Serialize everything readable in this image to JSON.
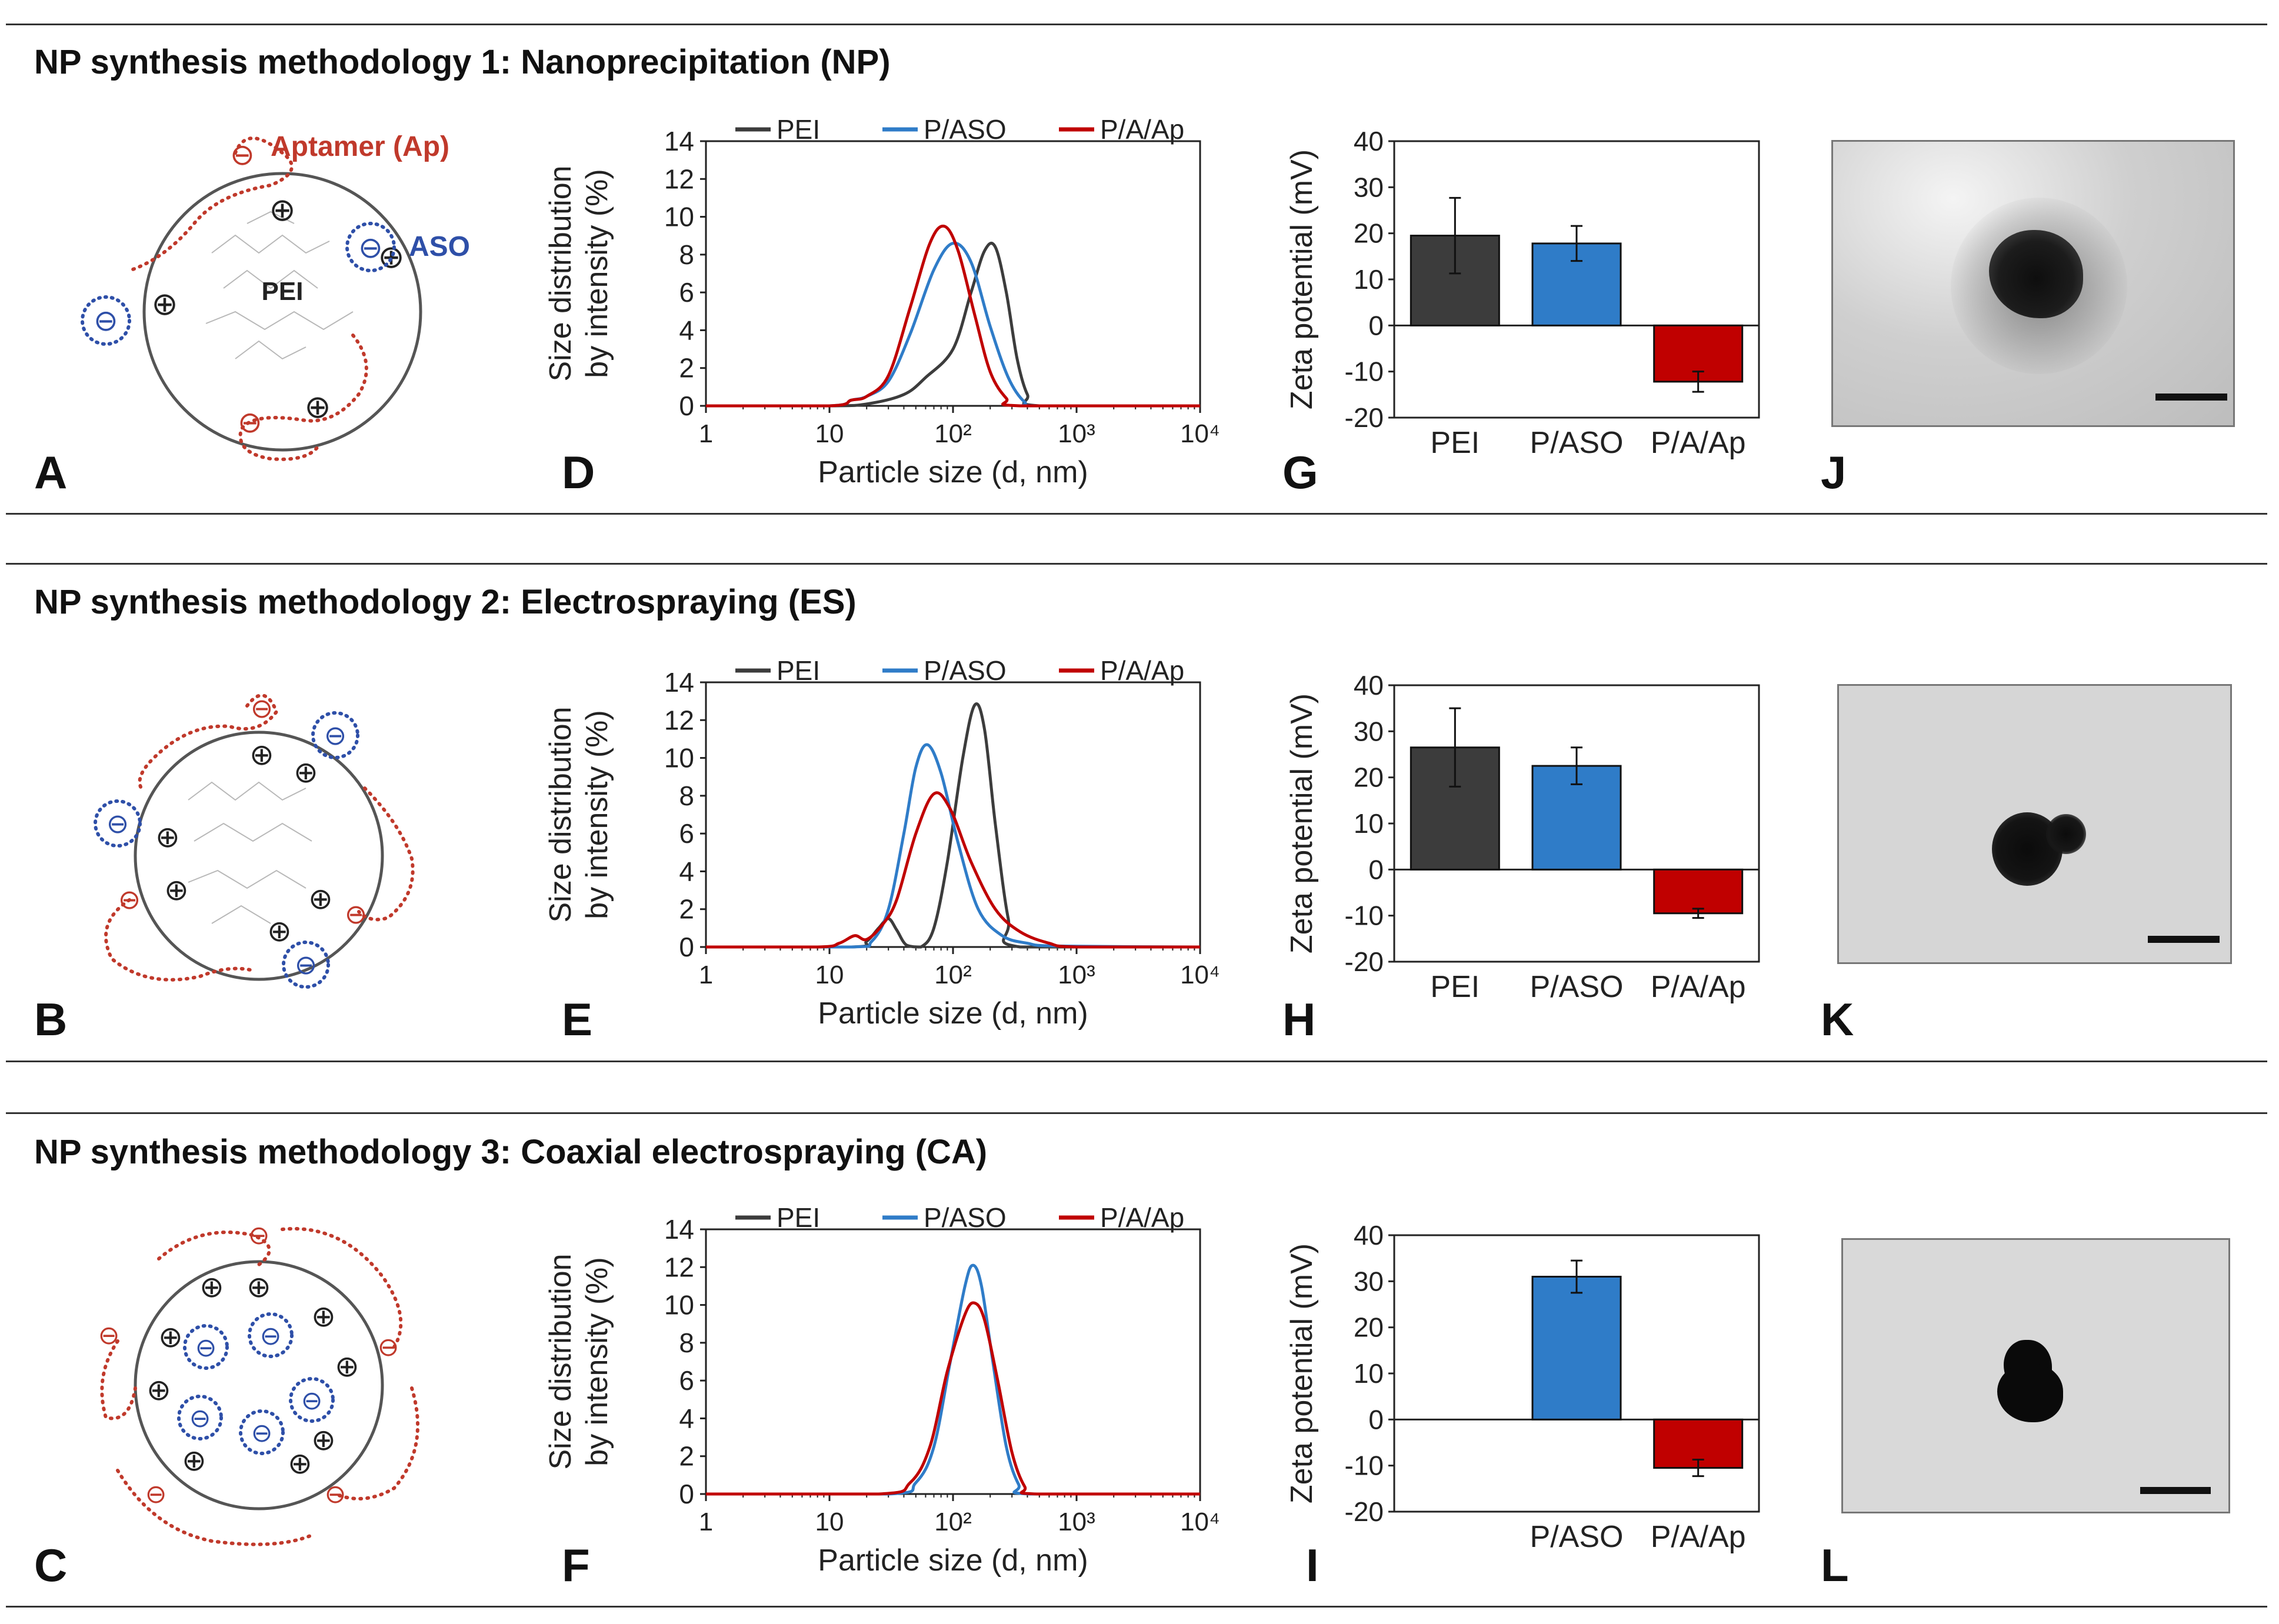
{
  "sections": [
    {
      "title": "NP synthesis methodology 1: Nanoprecipitation (NP)"
    },
    {
      "title": "NP synthesis methodology 2: Electrospraying (ES)"
    },
    {
      "title": "NP synthesis methodology 3: Coaxial electrospraying (CA)"
    }
  ],
  "panel_letters": [
    "A",
    "B",
    "C",
    "D",
    "E",
    "F",
    "G",
    "H",
    "I",
    "J",
    "K",
    "L"
  ],
  "schematic": {
    "aptamer_label": "Aptamer (Ap)",
    "aso_label": "ASO",
    "pei_label": "PEI",
    "plus_symbol": "⊕",
    "minus_symbol": "⊖"
  },
  "colors": {
    "PEI": "#3c3c3c",
    "P/ASO": "#2f7cc8",
    "P/A/Ap": "#c00000",
    "aptamer": "#c0392b",
    "aso": "#2e4fa8"
  },
  "chart_data": [
    {
      "id": "D",
      "type": "line",
      "xlabel": "Particle size (d, nm)",
      "ylabel_lines": [
        "Size distribution",
        "by intensity (%)"
      ],
      "xscale": "log",
      "xlim": [
        1,
        10000
      ],
      "ylim": [
        0,
        14
      ],
      "xticks": [
        "1",
        "10",
        "10²",
        "10³",
        "10⁴"
      ],
      "yticks": [
        "0",
        "2",
        "4",
        "6",
        "8",
        "10",
        "12",
        "14"
      ],
      "legend": [
        "PEI",
        "P/ASO",
        "P/A/Ap"
      ],
      "series": [
        {
          "name": "PEI",
          "points": [
            [
              1,
              0
            ],
            [
              10,
              0
            ],
            [
              20,
              0.1
            ],
            [
              40,
              0.6
            ],
            [
              60,
              1.5
            ],
            [
              100,
              3
            ],
            [
              140,
              6
            ],
            [
              180,
              8.2
            ],
            [
              220,
              8.4
            ],
            [
              270,
              6
            ],
            [
              330,
              2.5
            ],
            [
              400,
              0.6
            ],
            [
              500,
              0
            ],
            [
              10000,
              0
            ]
          ]
        },
        {
          "name": "P/ASO",
          "points": [
            [
              1,
              0
            ],
            [
              10,
              0
            ],
            [
              15,
              0.3
            ],
            [
              20,
              0.5
            ],
            [
              30,
              1.3
            ],
            [
              45,
              3.8
            ],
            [
              70,
              7.2
            ],
            [
              100,
              8.6
            ],
            [
              140,
              7.6
            ],
            [
              200,
              4.2
            ],
            [
              280,
              1.5
            ],
            [
              380,
              0.2
            ],
            [
              500,
              0
            ],
            [
              10000,
              0
            ]
          ]
        },
        {
          "name": "P/A/Ap",
          "points": [
            [
              1,
              0
            ],
            [
              10,
              0
            ],
            [
              15,
              0.3
            ],
            [
              20,
              0.5
            ],
            [
              30,
              1.6
            ],
            [
              45,
              5.2
            ],
            [
              65,
              8.6
            ],
            [
              85,
              9.5
            ],
            [
              110,
              8.2
            ],
            [
              150,
              4.8
            ],
            [
              200,
              1.8
            ],
            [
              270,
              0.4
            ],
            [
              350,
              0
            ],
            [
              10000,
              0
            ]
          ]
        }
      ]
    },
    {
      "id": "E",
      "type": "line",
      "xlabel": "Particle size (d, nm)",
      "ylabel_lines": [
        "Size distribution",
        "by intensity (%)"
      ],
      "xscale": "log",
      "xlim": [
        1,
        10000
      ],
      "ylim": [
        0,
        14
      ],
      "xticks": [
        "1",
        "10",
        "10²",
        "10³",
        "10⁴"
      ],
      "yticks": [
        "0",
        "2",
        "4",
        "6",
        "8",
        "10",
        "12",
        "14"
      ],
      "legend": [
        "PEI",
        "P/ASO",
        "P/A/Ap"
      ],
      "series": [
        {
          "name": "PEI",
          "points": [
            [
              1,
              0
            ],
            [
              15,
              0
            ],
            [
              20,
              0.3
            ],
            [
              25,
              1
            ],
            [
              30,
              1.5
            ],
            [
              35,
              0.9
            ],
            [
              42,
              0.1
            ],
            [
              55,
              0
            ],
            [
              70,
              1
            ],
            [
              90,
              4.5
            ],
            [
              120,
              10
            ],
            [
              150,
              12.8
            ],
            [
              180,
              11.5
            ],
            [
              220,
              6.5
            ],
            [
              280,
              1.5
            ],
            [
              350,
              0
            ],
            [
              10000,
              0
            ]
          ]
        },
        {
          "name": "P/ASO",
          "points": [
            [
              1,
              0
            ],
            [
              15,
              0
            ],
            [
              22,
              0.3
            ],
            [
              30,
              2
            ],
            [
              40,
              6
            ],
            [
              50,
              9.5
            ],
            [
              62,
              10.7
            ],
            [
              80,
              9.2
            ],
            [
              110,
              5.5
            ],
            [
              160,
              2
            ],
            [
              250,
              0.6
            ],
            [
              400,
              0.2
            ],
            [
              700,
              0.05
            ],
            [
              10000,
              0
            ]
          ]
        },
        {
          "name": "P/A/Ap",
          "points": [
            [
              1,
              0
            ],
            [
              8,
              0
            ],
            [
              12,
              0.2
            ],
            [
              16,
              0.6
            ],
            [
              20,
              0.4
            ],
            [
              27,
              1.2
            ],
            [
              35,
              2.5
            ],
            [
              50,
              6
            ],
            [
              70,
              8.1
            ],
            [
              95,
              7.3
            ],
            [
              140,
              4.5
            ],
            [
              220,
              2
            ],
            [
              350,
              0.8
            ],
            [
              600,
              0.2
            ],
            [
              1000,
              0
            ],
            [
              10000,
              0
            ]
          ]
        }
      ]
    },
    {
      "id": "F",
      "type": "line",
      "xlabel": "Particle size (d, nm)",
      "ylabel_lines": [
        "Size distribution",
        "by intensity (%)"
      ],
      "xscale": "log",
      "xlim": [
        1,
        10000
      ],
      "ylim": [
        0,
        14
      ],
      "xticks": [
        "1",
        "10",
        "10²",
        "10³",
        "10⁴"
      ],
      "yticks": [
        "0",
        "2",
        "4",
        "6",
        "8",
        "10",
        "12",
        "14"
      ],
      "legend": [
        "PEI",
        "P/ASO",
        "P/A/Ap"
      ],
      "series": [
        {
          "name": "P/ASO",
          "points": [
            [
              1,
              0
            ],
            [
              30,
              0
            ],
            [
              50,
              0.6
            ],
            [
              70,
              2.5
            ],
            [
              95,
              7
            ],
            [
              125,
              11
            ],
            [
              145,
              12.1
            ],
            [
              170,
              11
            ],
            [
              210,
              7
            ],
            [
              270,
              2.5
            ],
            [
              340,
              0.5
            ],
            [
              420,
              0
            ],
            [
              10000,
              0
            ]
          ]
        },
        {
          "name": "P/A/Ap",
          "points": [
            [
              1,
              0
            ],
            [
              25,
              0
            ],
            [
              45,
              0.6
            ],
            [
              65,
              2.5
            ],
            [
              90,
              6.5
            ],
            [
              125,
              9.5
            ],
            [
              150,
              10.1
            ],
            [
              180,
              9.2
            ],
            [
              230,
              6
            ],
            [
              300,
              2.2
            ],
            [
              380,
              0.4
            ],
            [
              480,
              0
            ],
            [
              10000,
              0
            ]
          ]
        }
      ]
    },
    {
      "id": "G",
      "type": "bar",
      "ylabel": "Zeta potential (mV)",
      "ylim": [
        -20,
        40
      ],
      "yticks": [
        "-20",
        "-10",
        "0",
        "10",
        "20",
        "30",
        "40"
      ],
      "categories": [
        "PEI",
        "P/ASO",
        "P/A/Ap"
      ],
      "values": [
        19.5,
        17.8,
        -12.2
      ],
      "errors": [
        8.2,
        3.8,
        2.2
      ]
    },
    {
      "id": "H",
      "type": "bar",
      "ylabel": "Zeta potential (mV)",
      "ylim": [
        -20,
        40
      ],
      "yticks": [
        "-20",
        "-10",
        "0",
        "10",
        "20",
        "30",
        "40"
      ],
      "categories": [
        "PEI",
        "P/ASO",
        "P/A/Ap"
      ],
      "values": [
        26.5,
        22.5,
        -9.5
      ],
      "errors": [
        8.5,
        4.0,
        1.0
      ]
    },
    {
      "id": "I",
      "type": "bar",
      "ylabel": "Zeta potential (mV)",
      "ylim": [
        -20,
        40
      ],
      "yticks": [
        "-20",
        "-10",
        "0",
        "10",
        "20",
        "30",
        "40"
      ],
      "categories": [
        "P/ASO",
        "P/A/Ap"
      ],
      "values": [
        31,
        -10.5
      ],
      "errors": [
        3.5,
        1.8
      ]
    }
  ]
}
